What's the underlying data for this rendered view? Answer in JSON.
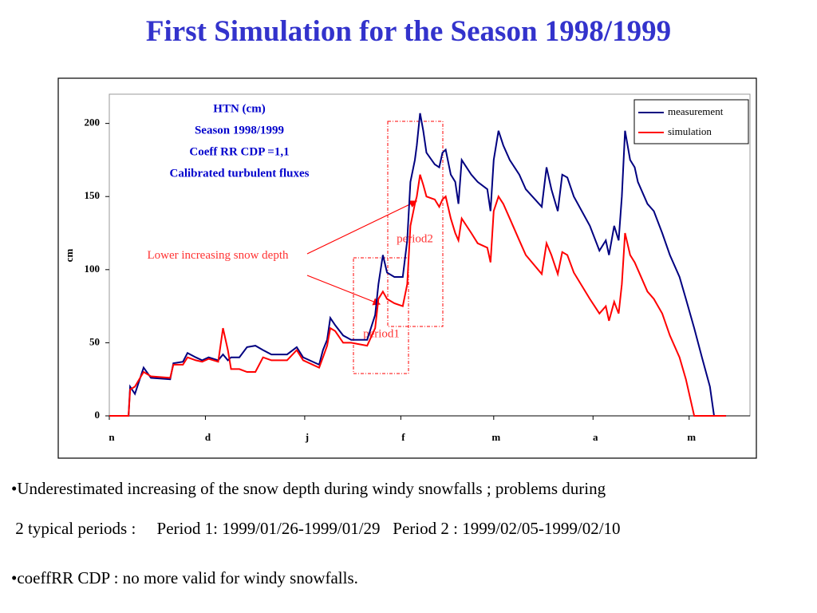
{
  "slide": {
    "title": "First Simulation for the Season 1998/1999",
    "bullets": [
      "•Underestimated increasing of the snow depth during windy snowfalls ; problems during",
      " 2 typical periods :     Period 1: 1999/01/26-1999/01/29   Period 2 : 1999/02/05-1999/02/10",
      "•coeffRR CDP : no more valid for windy snowfalls."
    ]
  },
  "chart_data": {
    "type": "line",
    "subtitle": [
      "HTN (cm)",
      "Season 1998/1999",
      "Coeff RR CDP =1,1",
      "Calibrated turbulent fluxes"
    ],
    "ylabel": "cm",
    "annotations": [
      "Lower increasing snow depth",
      "period1",
      "period2"
    ],
    "x": [
      0,
      6,
      6.5,
      8,
      10.7,
      13,
      19,
      20,
      23,
      24.4,
      27,
      29,
      31,
      34,
      35.5,
      37,
      38,
      40.6,
      43,
      45.6,
      48,
      50.6,
      52,
      55.5,
      58.5,
      60.5,
      65.5,
      66.7,
      68,
      69,
      70.5,
      73,
      75.5,
      80.5,
      83,
      84,
      85.4,
      86.7,
      89,
      91.6,
      93,
      94,
      95.4,
      96,
      97,
      98,
      99,
      101.6,
      103,
      104,
      105,
      106.6,
      108,
      109,
      110,
      113,
      115,
      118,
      119,
      120,
      121.5,
      123,
      125,
      128,
      130,
      135,
      136.5,
      138,
      140,
      141.4,
      143,
      145,
      150,
      153,
      155,
      156,
      157.6,
      159,
      160,
      161,
      162.6,
      164,
      165,
      168,
      170,
      172.6,
      175,
      178,
      180,
      182.6,
      185,
      187.5,
      188.8,
      192.5
    ],
    "series": [
      {
        "name": "measurement",
        "color": "#000080",
        "values": [
          0,
          0,
          20,
          15,
          33,
          26,
          25,
          36,
          37,
          43,
          40,
          38,
          40,
          38,
          42,
          38,
          40,
          40,
          47,
          48,
          45,
          42,
          42,
          42,
          47,
          40,
          35,
          45,
          52,
          67,
          62,
          55,
          52,
          52,
          69,
          90,
          110,
          98,
          95,
          95,
          120,
          160,
          175,
          185,
          207,
          195,
          180,
          172,
          170,
          180,
          182,
          165,
          160,
          145,
          175,
          165,
          160,
          155,
          140,
          175,
          195,
          185,
          175,
          165,
          155,
          143,
          170,
          155,
          140,
          165,
          163,
          150,
          130,
          113,
          120,
          110,
          130,
          120,
          150,
          195,
          175,
          170,
          160,
          145,
          140,
          125,
          110,
          95,
          80,
          60,
          40,
          20,
          0,
          0
        ]
      },
      {
        "name": "simulation",
        "color": "#ff0000",
        "values": [
          0,
          0,
          18,
          20,
          30,
          27,
          26,
          35,
          35,
          40,
          38,
          37,
          39,
          37,
          60,
          45,
          32,
          32,
          30,
          30,
          40,
          38,
          38,
          38,
          45,
          38,
          33,
          40,
          48,
          60,
          58,
          50,
          50,
          48,
          60,
          80,
          85,
          80,
          77,
          75,
          90,
          130,
          145,
          150,
          165,
          158,
          150,
          148,
          143,
          148,
          150,
          135,
          125,
          120,
          135,
          125,
          118,
          115,
          105,
          140,
          150,
          145,
          135,
          120,
          110,
          97,
          118,
          110,
          97,
          112,
          110,
          98,
          80,
          70,
          75,
          65,
          78,
          70,
          90,
          125,
          110,
          105,
          100,
          85,
          80,
          70,
          55,
          40,
          25,
          0,
          0,
          0,
          0,
          0
        ]
      }
    ],
    "xlim": [
      0,
      200
    ],
    "xticks": [
      {
        "value": 0,
        "label": "n"
      },
      {
        "value": 30,
        "label": "d"
      },
      {
        "value": 61,
        "label": "j"
      },
      {
        "value": 91,
        "label": "f"
      },
      {
        "value": 120,
        "label": "m"
      },
      {
        "value": 151,
        "label": "a"
      },
      {
        "value": 181,
        "label": "m"
      }
    ],
    "ylim": [
      0,
      220
    ],
    "yticks": [
      0,
      50,
      100,
      150,
      200
    ],
    "legend": "upper right"
  }
}
